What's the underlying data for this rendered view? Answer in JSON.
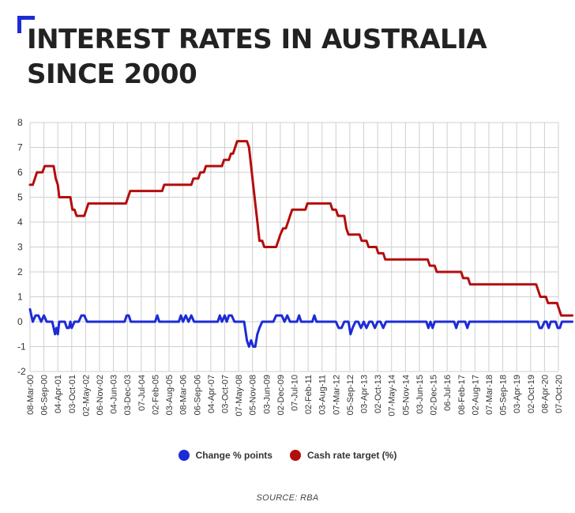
{
  "title": "INTEREST RATES IN AUSTRALIA SINCE 2000",
  "source": "SOURCE: RBA",
  "colors": {
    "accent": "#1d2bd6",
    "change": "#1d2bd6",
    "cash": "#b40d0d",
    "grid": "#cfcfcf"
  },
  "chart_data": {
    "type": "line",
    "title": "INTEREST RATES IN AUSTRALIA SINCE 2000",
    "xlabel": "",
    "ylabel": "",
    "ylim": [
      -2,
      8
    ],
    "yticks": [
      8,
      7,
      6,
      5,
      4,
      3,
      2,
      1,
      0,
      -1,
      -2
    ],
    "grid": true,
    "legend_position": "bottom",
    "x_tick_labels": [
      "08-Mar-00",
      "06-Sep-00",
      "04-Apr-01",
      "03-Oct-01",
      "02-May-02",
      "06-Nov-02",
      "04-Jun-03",
      "03-Dec-03",
      "07-Jul-04",
      "02-Feb-05",
      "03-Aug-05",
      "08-Mar-06",
      "06-Sep-06",
      "04-Apr-07",
      "03-Oct-07",
      "07-May-08",
      "05-Nov-08",
      "03-Jun-09",
      "02-Dec-09",
      "07-Jul-10",
      "02-Feb-11",
      "03-Aug-11",
      "07-Mar-12",
      "05-Sep-12",
      "03-Apr-13",
      "02-Oct-13",
      "07-May-14",
      "05-Nov-14",
      "03-Jun-15",
      "02-Dec-15",
      "06-Jul-16",
      "08-Feb-17",
      "02-Aug-17",
      "07-Mar-18",
      "05-Sep-18",
      "03-Apr-19",
      "02-Oct-19",
      "08-Apr-20",
      "07-Oct-20"
    ],
    "series": [
      {
        "name": "Change % points",
        "color": "#1d2bd6",
        "points": [
          [
            0,
            0.5
          ],
          [
            0.2,
            0
          ],
          [
            0.4,
            0.25
          ],
          [
            0.6,
            0.25
          ],
          [
            0.8,
            0
          ],
          [
            1.0,
            0.25
          ],
          [
            1.2,
            0
          ],
          [
            1.4,
            0
          ],
          [
            1.6,
            0
          ],
          [
            1.8,
            -0.5
          ],
          [
            1.9,
            -0.25
          ],
          [
            2.0,
            -0.5
          ],
          [
            2.1,
            0
          ],
          [
            2.5,
            0
          ],
          [
            2.65,
            -0.25
          ],
          [
            2.8,
            -0.25
          ],
          [
            2.9,
            0
          ],
          [
            3.0,
            -0.25
          ],
          [
            3.2,
            0
          ],
          [
            3.5,
            0
          ],
          [
            3.7,
            0.25
          ],
          [
            3.9,
            0.25
          ],
          [
            4.1,
            0
          ],
          [
            6.8,
            0
          ],
          [
            6.95,
            0.25
          ],
          [
            7.1,
            0.25
          ],
          [
            7.25,
            0
          ],
          [
            9.0,
            0
          ],
          [
            9.15,
            0.25
          ],
          [
            9.3,
            0
          ],
          [
            10.7,
            0
          ],
          [
            10.85,
            0.25
          ],
          [
            11.0,
            0
          ],
          [
            11.2,
            0.25
          ],
          [
            11.4,
            0
          ],
          [
            11.6,
            0.25
          ],
          [
            11.8,
            0
          ],
          [
            13.5,
            0
          ],
          [
            13.65,
            0.25
          ],
          [
            13.8,
            0
          ],
          [
            14.0,
            0.25
          ],
          [
            14.15,
            0
          ],
          [
            14.3,
            0.25
          ],
          [
            14.5,
            0.25
          ],
          [
            14.7,
            0
          ],
          [
            15.4,
            0
          ],
          [
            15.6,
            -0.75
          ],
          [
            15.75,
            -1.0
          ],
          [
            15.9,
            -0.75
          ],
          [
            16.05,
            -1.0
          ],
          [
            16.2,
            -1.0
          ],
          [
            16.35,
            -0.5
          ],
          [
            16.5,
            -0.25
          ],
          [
            16.7,
            0
          ],
          [
            17.5,
            0
          ],
          [
            17.7,
            0.25
          ],
          [
            17.9,
            0.25
          ],
          [
            18.1,
            0.25
          ],
          [
            18.3,
            0
          ],
          [
            18.5,
            0.25
          ],
          [
            18.7,
            0
          ],
          [
            19.2,
            0
          ],
          [
            19.35,
            0.25
          ],
          [
            19.5,
            0
          ],
          [
            20.3,
            0
          ],
          [
            20.45,
            0.25
          ],
          [
            20.6,
            0
          ],
          [
            22.0,
            0
          ],
          [
            22.2,
            -0.25
          ],
          [
            22.4,
            -0.25
          ],
          [
            22.6,
            0
          ],
          [
            22.9,
            0
          ],
          [
            23.05,
            -0.5
          ],
          [
            23.2,
            -0.25
          ],
          [
            23.4,
            0
          ],
          [
            23.6,
            0
          ],
          [
            23.8,
            -0.25
          ],
          [
            24.0,
            0
          ],
          [
            24.2,
            -0.25
          ],
          [
            24.4,
            0
          ],
          [
            24.6,
            0
          ],
          [
            24.8,
            -0.25
          ],
          [
            25.0,
            0
          ],
          [
            25.2,
            0
          ],
          [
            25.4,
            -0.25
          ],
          [
            25.6,
            0
          ],
          [
            28.5,
            0
          ],
          [
            28.65,
            -0.25
          ],
          [
            28.8,
            0
          ],
          [
            28.95,
            -0.25
          ],
          [
            29.1,
            0
          ],
          [
            30.5,
            0
          ],
          [
            30.65,
            -0.25
          ],
          [
            30.8,
            0
          ],
          [
            31.3,
            0
          ],
          [
            31.45,
            -0.25
          ],
          [
            31.6,
            0
          ],
          [
            36.5,
            0
          ],
          [
            36.65,
            -0.25
          ],
          [
            36.8,
            -0.25
          ],
          [
            37.0,
            0
          ],
          [
            37.15,
            0
          ],
          [
            37.3,
            -0.25
          ],
          [
            37.45,
            0
          ],
          [
            37.8,
            0
          ],
          [
            37.95,
            -0.25
          ],
          [
            38.1,
            -0.25
          ],
          [
            38.25,
            0
          ],
          [
            39,
            0
          ]
        ]
      },
      {
        "name": "Cash rate target (%)",
        "color": "#b40d0d",
        "points": [
          [
            0,
            5.5
          ],
          [
            0.2,
            5.5
          ],
          [
            0.35,
            5.75
          ],
          [
            0.5,
            6.0
          ],
          [
            0.9,
            6.0
          ],
          [
            1.05,
            6.25
          ],
          [
            1.7,
            6.25
          ],
          [
            1.85,
            5.75
          ],
          [
            2.0,
            5.5
          ],
          [
            2.1,
            5.0
          ],
          [
            2.9,
            5.0
          ],
          [
            3.05,
            4.5
          ],
          [
            3.2,
            4.5
          ],
          [
            3.35,
            4.25
          ],
          [
            3.9,
            4.25
          ],
          [
            4.05,
            4.5
          ],
          [
            4.2,
            4.75
          ],
          [
            6.9,
            4.75
          ],
          [
            7.05,
            5.0
          ],
          [
            7.2,
            5.25
          ],
          [
            9.5,
            5.25
          ],
          [
            9.65,
            5.5
          ],
          [
            11.6,
            5.5
          ],
          [
            11.75,
            5.75
          ],
          [
            12.1,
            5.75
          ],
          [
            12.25,
            6.0
          ],
          [
            12.5,
            6.0
          ],
          [
            12.65,
            6.25
          ],
          [
            13.8,
            6.25
          ],
          [
            13.95,
            6.5
          ],
          [
            14.3,
            6.5
          ],
          [
            14.45,
            6.75
          ],
          [
            14.6,
            6.75
          ],
          [
            14.75,
            7.0
          ],
          [
            14.9,
            7.25
          ],
          [
            15.6,
            7.25
          ],
          [
            15.75,
            7.0
          ],
          [
            15.95,
            6.0
          ],
          [
            16.1,
            5.25
          ],
          [
            16.3,
            4.25
          ],
          [
            16.5,
            3.25
          ],
          [
            16.7,
            3.25
          ],
          [
            16.85,
            3.0
          ],
          [
            17.7,
            3.0
          ],
          [
            17.85,
            3.25
          ],
          [
            18.0,
            3.5
          ],
          [
            18.2,
            3.75
          ],
          [
            18.4,
            3.75
          ],
          [
            18.55,
            4.0
          ],
          [
            18.7,
            4.25
          ],
          [
            18.85,
            4.5
          ],
          [
            19.8,
            4.5
          ],
          [
            19.95,
            4.75
          ],
          [
            21.6,
            4.75
          ],
          [
            21.75,
            4.5
          ],
          [
            22.0,
            4.5
          ],
          [
            22.15,
            4.25
          ],
          [
            22.6,
            4.25
          ],
          [
            22.75,
            3.75
          ],
          [
            22.9,
            3.5
          ],
          [
            23.7,
            3.5
          ],
          [
            23.85,
            3.25
          ],
          [
            24.2,
            3.25
          ],
          [
            24.35,
            3.0
          ],
          [
            24.9,
            3.0
          ],
          [
            25.05,
            2.75
          ],
          [
            25.4,
            2.75
          ],
          [
            25.55,
            2.5
          ],
          [
            28.6,
            2.5
          ],
          [
            28.75,
            2.25
          ],
          [
            29.1,
            2.25
          ],
          [
            29.25,
            2.0
          ],
          [
            31.0,
            2.0
          ],
          [
            31.15,
            1.75
          ],
          [
            31.5,
            1.75
          ],
          [
            31.65,
            1.5
          ],
          [
            36.4,
            1.5
          ],
          [
            36.55,
            1.25
          ],
          [
            36.7,
            1.0
          ],
          [
            37.1,
            1.0
          ],
          [
            37.25,
            0.75
          ],
          [
            37.9,
            0.75
          ],
          [
            38.05,
            0.5
          ],
          [
            38.2,
            0.25
          ],
          [
            39,
            0.25
          ]
        ]
      }
    ]
  }
}
